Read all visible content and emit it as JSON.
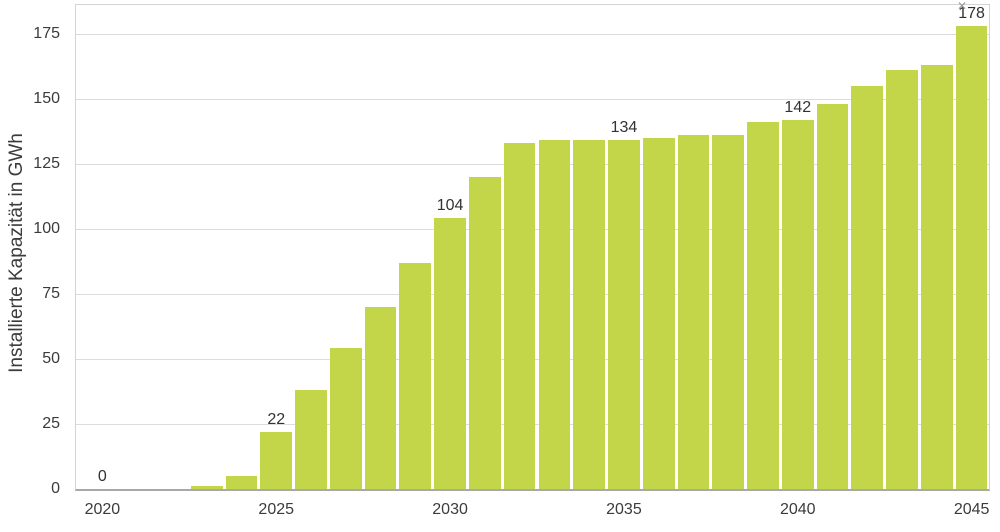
{
  "window": {
    "close_icon": "✕"
  },
  "colors": {
    "bar": "#c3d649",
    "grid": "#dcdcdc",
    "border": "#d4d4d4",
    "axis": "#a8a8a8",
    "text": "#3b3b3b",
    "icon": "#9b9b9b",
    "background": "#ffffff"
  },
  "chart_data": {
    "type": "bar",
    "title": "",
    "xlabel": "",
    "ylabel": "Installierte Kapazität in GWh",
    "categories": [
      "2020",
      "2021",
      "2022",
      "2023",
      "2024",
      "2025",
      "2026",
      "2027",
      "2028",
      "2029",
      "2030",
      "2031",
      "2032",
      "2033",
      "2034",
      "2035",
      "2036",
      "2037",
      "2038",
      "2039",
      "2040",
      "2041",
      "2042",
      "2043",
      "2044",
      "2045"
    ],
    "values": [
      0,
      0,
      0,
      1,
      5,
      22,
      38,
      54,
      70,
      87,
      104,
      120,
      133,
      134,
      134,
      134,
      135,
      136,
      136,
      141,
      142,
      148,
      155,
      161,
      163,
      178
    ],
    "bar_labels": [
      "0",
      "",
      "",
      "",
      "",
      "22",
      "",
      "",
      "",
      "",
      "104",
      "",
      "",
      "",
      "",
      "134",
      "",
      "",
      "",
      "",
      "142",
      "",
      "",
      "",
      "",
      "178"
    ],
    "y_ticks": [
      "0",
      "25",
      "50",
      "75",
      "100",
      "125",
      "150",
      "175"
    ],
    "x_ticks": [
      "2020",
      "2025",
      "2030",
      "2035",
      "2040",
      "2045"
    ],
    "ylim": [
      0,
      186
    ],
    "grid": "horizontal",
    "legend": false,
    "unit": "GWh"
  }
}
